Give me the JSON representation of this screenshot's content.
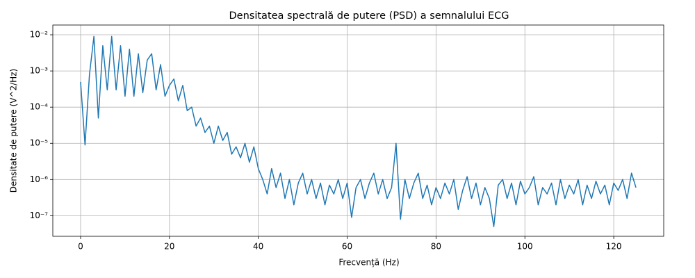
{
  "chart_data": {
    "type": "line",
    "title": "Densitatea spectrală de putere (PSD) a semnalului ECG",
    "x_label": "Frecvență (Hz)",
    "y_label": "Densitate de putere (V^2/Hz)",
    "log_y": true,
    "grid": true,
    "xlim": [
      -6.25,
      131.25
    ],
    "ylim": [
      2.7e-08,
      0.0186
    ],
    "xticks": [
      0,
      20,
      40,
      60,
      80,
      100,
      120
    ],
    "yticks": [
      {
        "value": 1e-07,
        "label": "10⁻⁷"
      },
      {
        "value": 1e-06,
        "label": "10⁻⁶"
      },
      {
        "value": 1e-05,
        "label": "10⁻⁵"
      },
      {
        "value": 0.0001,
        "label": "10⁻⁴"
      },
      {
        "value": 0.001,
        "label": "10⁻³"
      },
      {
        "value": 0.01,
        "label": "10⁻²"
      }
    ],
    "x": [
      0,
      1,
      2,
      3,
      4,
      5,
      6,
      7,
      8,
      9,
      10,
      11,
      12,
      13,
      14,
      15,
      16,
      17,
      18,
      19,
      20,
      21,
      22,
      23,
      24,
      25,
      26,
      27,
      28,
      29,
      30,
      31,
      32,
      33,
      34,
      35,
      36,
      37,
      38,
      39,
      40,
      41,
      42,
      43,
      44,
      45,
      46,
      47,
      48,
      49,
      50,
      51,
      52,
      53,
      54,
      55,
      56,
      57,
      58,
      59,
      60,
      61,
      62,
      63,
      64,
      65,
      66,
      67,
      68,
      69,
      70,
      71,
      72,
      73,
      74,
      75,
      76,
      77,
      78,
      79,
      80,
      81,
      82,
      83,
      84,
      85,
      86,
      87,
      88,
      89,
      90,
      91,
      92,
      93,
      94,
      95,
      96,
      97,
      98,
      99,
      100,
      101,
      102,
      103,
      104,
      105,
      106,
      107,
      108,
      109,
      110,
      111,
      112,
      113,
      114,
      115,
      116,
      117,
      118,
      119,
      120,
      121,
      122,
      123,
      124,
      125
    ],
    "series": [
      {
        "color": "#1f77b4",
        "values": [
          0.0005,
          9e-06,
          0.0008,
          0.009,
          5e-05,
          0.005,
          0.0003,
          0.009,
          0.0003,
          0.005,
          0.0002,
          0.004,
          0.0002,
          0.003,
          0.00025,
          0.002,
          0.003,
          0.0003,
          0.0015,
          0.0002,
          0.0004,
          0.0006,
          0.00015,
          0.0004,
          8e-05,
          0.0001,
          3e-05,
          5e-05,
          2e-05,
          3e-05,
          1e-05,
          3e-05,
          1.2e-05,
          2e-05,
          5e-06,
          8e-06,
          4e-06,
          1e-05,
          3e-06,
          8e-06,
          2e-06,
          1e-06,
          4e-07,
          2e-06,
          6e-07,
          1.5e-06,
          3e-07,
          1e-06,
          2e-07,
          8e-07,
          1.5e-06,
          4e-07,
          1e-06,
          3e-07,
          8e-07,
          2e-07,
          7e-07,
          4e-07,
          1e-06,
          3e-07,
          8e-07,
          9e-08,
          6e-07,
          1e-06,
          3e-07,
          8e-07,
          1.5e-06,
          4e-07,
          1e-06,
          3e-07,
          6e-07,
          1e-05,
          8e-08,
          1e-06,
          3e-07,
          8e-07,
          1.5e-06,
          3e-07,
          7e-07,
          2e-07,
          6e-07,
          3e-07,
          8e-07,
          4e-07,
          1e-06,
          1.5e-07,
          5e-07,
          1.2e-06,
          3e-07,
          8e-07,
          2e-07,
          6e-07,
          3e-07,
          5e-08,
          7e-07,
          1e-06,
          3e-07,
          8e-07,
          2e-07,
          9e-07,
          4e-07,
          6e-07,
          1.2e-06,
          2e-07,
          6e-07,
          4e-07,
          8e-07,
          2e-07,
          1e-06,
          3e-07,
          7e-07,
          4e-07,
          1e-06,
          2e-07,
          7e-07,
          3e-07,
          9e-07,
          4e-07,
          7e-07,
          2e-07,
          8e-07,
          5e-07,
          1e-06,
          3e-07,
          1.5e-06,
          6e-07
        ]
      }
    ]
  }
}
